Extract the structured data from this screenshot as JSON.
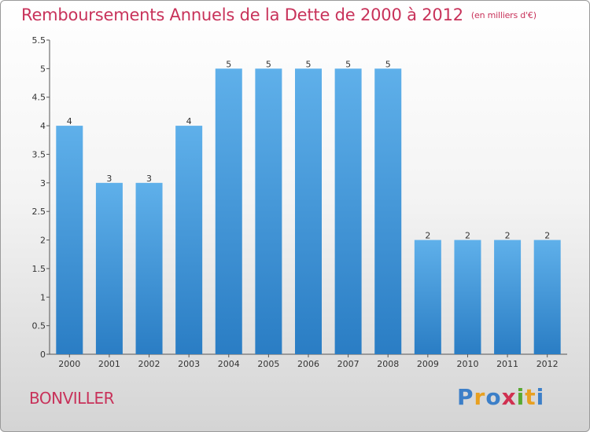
{
  "chart_data": {
    "type": "bar",
    "title": "Remboursements Annuels de la Dette de 2000 à 2012",
    "subtitle": "(en milliers d'€)",
    "categories": [
      "2000",
      "2001",
      "2002",
      "2003",
      "2004",
      "2005",
      "2006",
      "2007",
      "2008",
      "2009",
      "2010",
      "2011",
      "2012"
    ],
    "values": [
      4,
      3,
      3,
      4,
      5,
      5,
      5,
      5,
      5,
      2,
      2,
      2,
      2
    ],
    "ylim": [
      0,
      5.5
    ],
    "yticks": [
      "0",
      "0.5",
      "1",
      "1.5",
      "2",
      "2.5",
      "3",
      "3.5",
      "4",
      "4.5",
      "5",
      "5.5"
    ],
    "grid": false,
    "bar_color": "#3f95d8"
  },
  "commune": "BONVILLER",
  "logo": {
    "letters": [
      "P",
      "r",
      "o",
      "x",
      "i",
      "t",
      "i"
    ],
    "colors": [
      "#3c7fc8",
      "#e8a020",
      "#3c7fc8",
      "#d03050",
      "#58a830",
      "#e8a020",
      "#3c7fc8"
    ]
  }
}
